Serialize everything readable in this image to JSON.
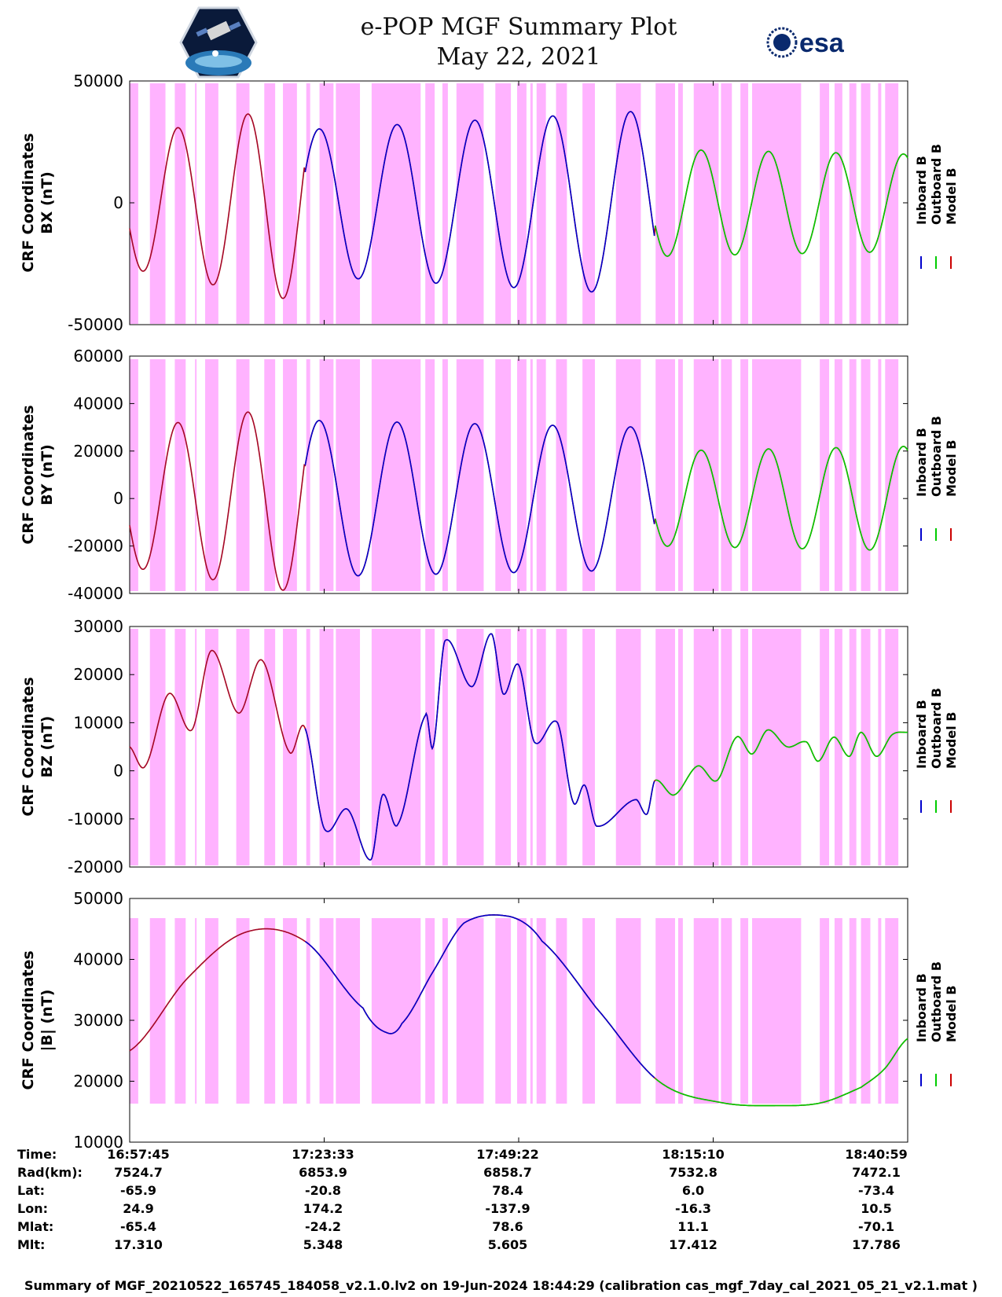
{
  "header": {
    "title_line1": "e-POP MGF Summary Plot",
    "title_line2": "May 22, 2021",
    "logo_left": "cassiope-logo",
    "logo_right_text": "esa"
  },
  "chart_data": [
    {
      "type": "line",
      "panel": "BX",
      "ylabel_line1": "CRF Coordinates",
      "ylabel_line2": "BX (nT)",
      "ylim": [
        -50000,
        50000
      ],
      "yticks": [
        -50000,
        0,
        50000
      ],
      "kind": "osc",
      "segments": [
        {
          "t0": 0,
          "t1": 0.225,
          "amp0": 27000,
          "amp1": 41000,
          "n0": 0.0,
          "n1": 5.0
        },
        {
          "t0": 0.225,
          "t1": 0.675,
          "amp0": 30000,
          "amp1": 38000,
          "n0": 5.0,
          "n1": 14.0
        },
        {
          "t0": 0.675,
          "t1": 1.0,
          "amp0": 22000,
          "amp1": 20000,
          "n0": 14.0,
          "n1": 21.5
        }
      ],
      "series": [
        {
          "name": "Inboard B",
          "color": "#0000cc"
        },
        {
          "name": "Outboard B",
          "color": "#00cc00"
        },
        {
          "name": "Model B",
          "color": "#cc0000"
        }
      ]
    },
    {
      "type": "line",
      "panel": "BY",
      "ylabel_line1": "CRF Coordinates",
      "ylabel_line2": "BY (nT)",
      "ylim": [
        -40000,
        60000
      ],
      "yticks": [
        -40000,
        -20000,
        0,
        20000,
        40000,
        60000
      ],
      "kind": "osc",
      "segments": [
        {
          "t0": 0,
          "t1": 0.225,
          "amp0": 29000,
          "amp1": 40000,
          "n0": 0.0,
          "n1": 5.0
        },
        {
          "t0": 0.225,
          "t1": 0.675,
          "amp0": 33000,
          "amp1": 30000,
          "n0": 5.0,
          "n1": 14.0
        },
        {
          "t0": 0.675,
          "t1": 1.0,
          "amp0": 20000,
          "amp1": 22000,
          "n0": 14.0,
          "n1": 21.5
        }
      ],
      "series": [
        {
          "name": "Inboard B",
          "color": "#0000cc"
        },
        {
          "name": "Outboard B",
          "color": "#00cc00"
        },
        {
          "name": "Model B",
          "color": "#cc0000"
        }
      ]
    },
    {
      "type": "line",
      "panel": "BZ",
      "ylabel_line1": "CRF Coordinates",
      "ylabel_line2": "BZ (nT)",
      "ylim": [
        -20000,
        30000
      ],
      "yticks": [
        -20000,
        -10000,
        0,
        10000,
        20000,
        30000
      ],
      "kind": "points",
      "x": [
        0,
        0.02,
        0.05,
        0.08,
        0.105,
        0.14,
        0.17,
        0.205,
        0.225,
        0.25,
        0.28,
        0.31,
        0.325,
        0.345,
        0.38,
        0.39,
        0.405,
        0.44,
        0.465,
        0.48,
        0.5,
        0.52,
        0.55,
        0.57,
        0.585,
        0.6,
        0.65,
        0.665,
        0.675,
        0.7,
        0.73,
        0.755,
        0.78,
        0.8,
        0.82,
        0.845,
        0.87,
        0.885,
        0.905,
        0.925,
        0.94,
        0.96,
        0.98,
        1.0
      ],
      "values": [
        5000,
        1000,
        16000,
        8500,
        25000,
        12000,
        23000,
        4000,
        9000,
        -12000,
        -8000,
        -18500,
        -5000,
        -11000,
        11500,
        5000,
        27000,
        17500,
        28500,
        16000,
        22000,
        6000,
        10000,
        -6500,
        -3000,
        -11500,
        -6000,
        -9000,
        -2000,
        -5000,
        1000,
        -2000,
        7000,
        3500,
        8500,
        5000,
        6000,
        2000,
        7000,
        3000,
        8000,
        3000,
        7500,
        8000
      ],
      "series": [
        {
          "name": "Inboard B",
          "color": "#0000cc"
        },
        {
          "name": "Outboard B",
          "color": "#00cc00"
        },
        {
          "name": "Model B",
          "color": "#cc0000"
        }
      ]
    },
    {
      "type": "line",
      "panel": "B",
      "ylabel_line1": "CRF Coordinates",
      "ylabel_line2": "|B| (nT)",
      "ylim": [
        10000,
        50000
      ],
      "yticks": [
        10000,
        20000,
        30000,
        40000,
        50000
      ],
      "kind": "points",
      "x": [
        0,
        0.075,
        0.15,
        0.225,
        0.3,
        0.33,
        0.35,
        0.39,
        0.43,
        0.49,
        0.53,
        0.6,
        0.68,
        0.76,
        0.84,
        0.89,
        0.94,
        0.97,
        1.0
      ],
      "values": [
        25000,
        37000,
        44500,
        43000,
        32000,
        28000,
        29500,
        38000,
        46000,
        47000,
        43000,
        32000,
        20000,
        16500,
        16000,
        16500,
        19000,
        22000,
        27000
      ],
      "series": [
        {
          "name": "Inboard B",
          "color": "#0000cc"
        },
        {
          "name": "Outboard B",
          "color": "#00cc00"
        },
        {
          "name": "Model B",
          "color": "#cc0000"
        }
      ]
    }
  ],
  "shading": {
    "color": "#ffb3ff",
    "bands": [
      [
        0.0,
        0.011
      ],
      [
        0.026,
        0.046
      ],
      [
        0.058,
        0.072
      ],
      [
        0.084,
        0.08
      ],
      [
        0.084,
        0.086
      ],
      [
        0.097,
        0.114
      ],
      [
        0.137,
        0.154
      ],
      [
        0.173,
        0.187
      ],
      [
        0.197,
        0.215
      ],
      [
        0.227,
        0.232
      ],
      [
        0.244,
        0.262
      ],
      [
        0.265,
        0.296
      ],
      [
        0.311,
        0.374
      ],
      [
        0.38,
        0.392
      ],
      [
        0.402,
        0.409
      ],
      [
        0.42,
        0.455
      ],
      [
        0.47,
        0.49
      ],
      [
        0.498,
        0.51
      ],
      [
        0.515,
        0.518
      ],
      [
        0.523,
        0.535
      ],
      [
        0.548,
        0.562
      ],
      [
        0.582,
        0.598
      ],
      [
        0.625,
        0.657
      ],
      [
        0.676,
        0.701
      ],
      [
        0.705,
        0.711
      ],
      [
        0.725,
        0.757
      ],
      [
        0.76,
        0.774
      ],
      [
        0.785,
        0.795
      ],
      [
        0.8,
        0.863
      ],
      [
        0.887,
        0.899
      ],
      [
        0.906,
        0.916
      ],
      [
        0.925,
        0.934
      ],
      [
        0.94,
        0.952
      ],
      [
        0.962,
        0.966
      ],
      [
        0.971,
        0.988
      ]
    ]
  },
  "legend": [
    "Inboard B",
    "Outboard B",
    "Model B"
  ],
  "ephemeris": {
    "labels": [
      "Time:",
      "Rad(km):",
      "Lat:",
      "Lon:",
      "Mlat:",
      "Mlt:"
    ],
    "columns": [
      [
        "16:57:45",
        "7524.7",
        "-65.9",
        "24.9",
        "-65.4",
        "17.310"
      ],
      [
        "17:23:33",
        "6853.9",
        "-20.8",
        "174.2",
        "-24.2",
        "5.348"
      ],
      [
        "17:49:22",
        "6858.7",
        "78.4",
        "-137.9",
        "78.6",
        "5.605"
      ],
      [
        "18:15:10",
        "7532.8",
        "6.0",
        "-16.3",
        "11.1",
        "17.412"
      ],
      [
        "18:40:59",
        "7472.1",
        "-73.4",
        "10.5",
        "-70.1",
        "17.786"
      ]
    ]
  },
  "footer": "Summary of MGF_20210522_165745_184058_v2.1.0.lv2 on 19-Jun-2024 18:44:29 (calibration cas_mgf_7day_cal_2021_05_21_v2.1.mat )"
}
